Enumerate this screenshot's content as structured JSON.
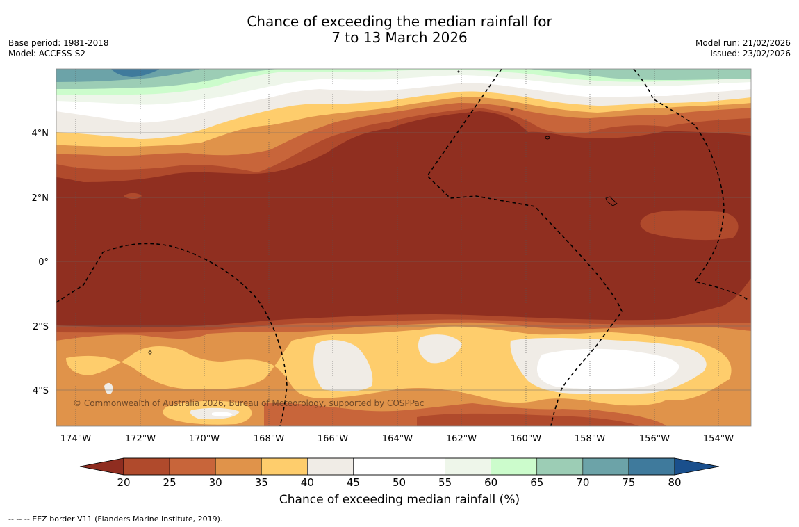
{
  "title": {
    "line1": "Chance of exceeding the median rainfall for",
    "line2": "7 to 13 March 2026"
  },
  "meta": {
    "base_period": "Base period: 1981-2018",
    "model": "Model: ACCESS-S2",
    "model_run": "Model run: 21/02/2026",
    "issued": "Issued: 23/02/2026"
  },
  "map": {
    "lat_labels": [
      "4°N",
      "2°N",
      "0°",
      "2°S",
      "4°S"
    ],
    "lon_labels": [
      "174°W",
      "172°W",
      "170°W",
      "168°W",
      "166°W",
      "164°W",
      "162°W",
      "160°W",
      "158°W",
      "156°W",
      "154°W"
    ],
    "copyright": "© Commonwealth of Australia 2026, Bureau of Meteorology, supported by COSPPac"
  },
  "colorbar": {
    "ticks": [
      "20",
      "25",
      "30",
      "35",
      "40",
      "45",
      "50",
      "55",
      "60",
      "65",
      "70",
      "75",
      "80"
    ],
    "colors": [
      "#b04a2c",
      "#c8653a",
      "#e0934a",
      "#fecd6c",
      "#f0ece6",
      "#ffffff",
      "#ffffff",
      "#eef6ea",
      "#ccfccc",
      "#9ccdb5",
      "#6ca3a8",
      "#3f7a9c"
    ],
    "under_color": "#8f2d20",
    "over_color": "#1a4f8c",
    "label": "Chance of exceeding median rainfall (%)"
  },
  "footer": "--  --  -- EEZ border V11 (Flanders Marine Institute, 2019)."
}
